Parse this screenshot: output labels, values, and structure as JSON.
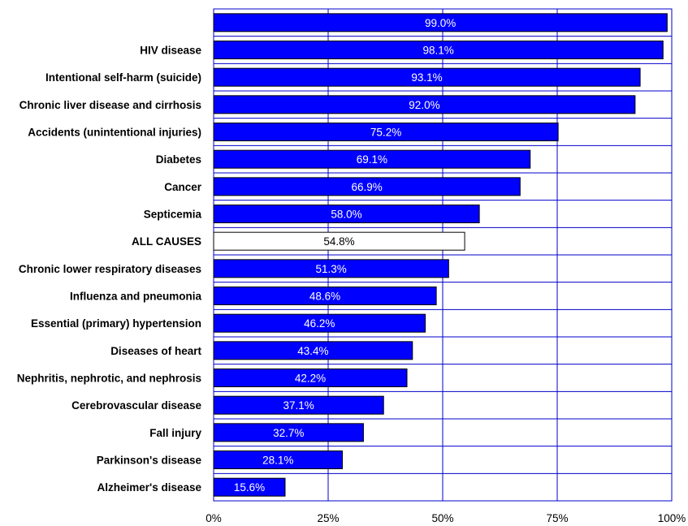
{
  "chart_data": {
    "type": "bar",
    "orientation": "horizontal",
    "categories": [
      "",
      "HIV disease",
      "Intentional self-harm (suicide)",
      "Chronic liver disease and cirrhosis",
      "Accidents (unintentional injuries)",
      "Diabetes",
      "Cancer",
      "Septicemia",
      "ALL CAUSES",
      "Chronic lower respiratory diseases",
      "Influenza and pneumonia",
      "Essential (primary) hypertension",
      "Diseases of heart",
      "Nephritis, nephrotic, and nephrosis",
      "Cerebrovascular disease",
      "Fall injury",
      "Parkinson's disease",
      "Alzheimer's disease"
    ],
    "values": [
      99.0,
      98.1,
      93.1,
      92.0,
      75.2,
      69.1,
      66.9,
      58.0,
      54.8,
      51.3,
      48.6,
      46.2,
      43.4,
      42.2,
      37.1,
      32.7,
      28.1,
      15.6
    ],
    "value_labels": [
      "99.0%",
      "98.1%",
      "93.1%",
      "92.0%",
      "75.2%",
      "69.1%",
      "66.9%",
      "58.0%",
      "54.8%",
      "51.3%",
      "48.6%",
      "46.2%",
      "43.4%",
      "42.2%",
      "37.1%",
      "32.7%",
      "28.1%",
      "15.6%"
    ],
    "highlight_category": "ALL CAUSES",
    "xlim": [
      0,
      100
    ],
    "x_ticks": [
      "0%",
      "25%",
      "50%",
      "75%",
      "100%"
    ],
    "x_tick_values": [
      0,
      25,
      50,
      75,
      100
    ],
    "title": "",
    "xlabel": "",
    "ylabel": "",
    "grid": true,
    "legend": "none",
    "colors": {
      "bar": "#0000FF",
      "bar_outline": "#000000",
      "highlight_bar": "#FFFFFF",
      "grid": "#0000CC",
      "plot_border": "#0000CC",
      "label_on_bar": "#FFFFFF",
      "label_on_highlight": "#000000"
    }
  }
}
